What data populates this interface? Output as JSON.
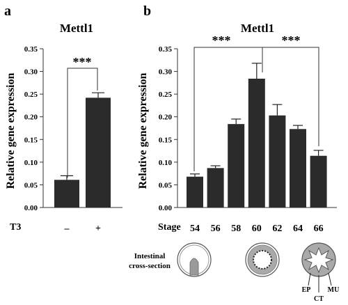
{
  "panels": [
    {
      "letter": "a",
      "title": "Mettl1",
      "ylabel": "Relative gene expression",
      "yticks": [
        "0.00",
        "0.05",
        "0.10",
        "0.15",
        "0.20",
        "0.25",
        "0.30",
        "0.35"
      ],
      "xaxis_label": "T3",
      "categories": [
        "–",
        "+"
      ],
      "significance": "***"
    },
    {
      "letter": "b",
      "title": "Mettl1",
      "ylabel": "Relative gene expression",
      "yticks": [
        "0.00",
        "0.05",
        "0.10",
        "0.15",
        "0.20",
        "0.25",
        "0.30",
        "0.35"
      ],
      "xaxis_label": "Stage",
      "categories": [
        "54",
        "56",
        "58",
        "60",
        "62",
        "64",
        "66"
      ],
      "significance_left": "***",
      "significance_right": "***"
    }
  ],
  "chart_data": [
    {
      "type": "bar",
      "title": "Mettl1",
      "xlabel": "T3",
      "ylabel": "Relative gene expression",
      "categories": [
        "–",
        "+"
      ],
      "values": [
        0.061,
        0.242
      ],
      "errors": [
        0.009,
        0.011
      ],
      "ylim": [
        0,
        0.35
      ],
      "bar_color": "#2b2b2b",
      "grid": false,
      "annotations": [
        "***"
      ]
    },
    {
      "type": "bar",
      "title": "Mettl1",
      "xlabel": "Stage",
      "ylabel": "Relative gene expression",
      "categories": [
        "54",
        "56",
        "58",
        "60",
        "62",
        "64",
        "66"
      ],
      "values": [
        0.068,
        0.087,
        0.184,
        0.284,
        0.203,
        0.173,
        0.114
      ],
      "errors": [
        0.006,
        0.005,
        0.011,
        0.034,
        0.024,
        0.008,
        0.012
      ],
      "ylim": [
        0,
        0.35
      ],
      "bar_color": "#2b2b2b",
      "grid": false,
      "annotations": [
        "***",
        "***"
      ]
    }
  ],
  "legend_diagram": {
    "cross_section_label_line1": "Intestinal",
    "cross_section_label_line2": "cross-section",
    "layer_labels": [
      "EP",
      "CT",
      "MU"
    ],
    "colors": {
      "lumen": "#ffffff",
      "wall": "#a9a9a9",
      "epithelium": "#8a8a8a",
      "outline": "#333333"
    }
  }
}
